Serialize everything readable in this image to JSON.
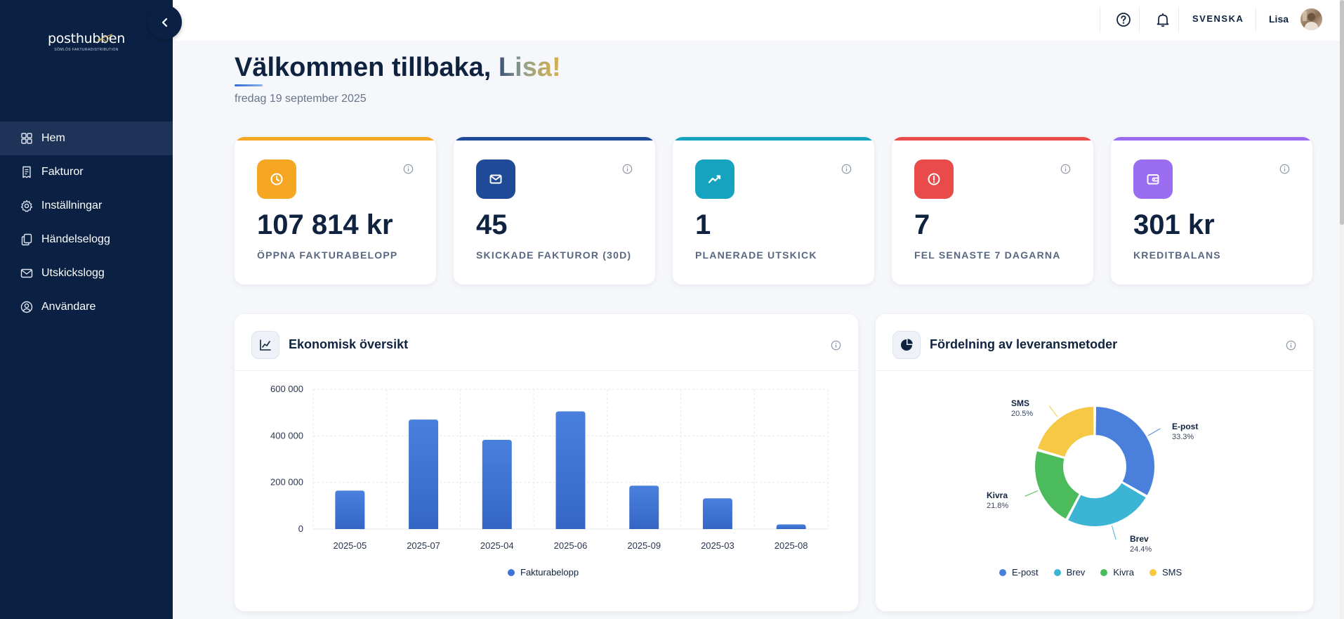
{
  "sidebar": {
    "logo": {
      "word": "posthubben",
      "tagline": "SÖMLÖS FAKTURADISTRIBUTION"
    },
    "items": [
      {
        "label": "Hem",
        "icon": "grid-icon"
      },
      {
        "label": "Fakturor",
        "icon": "invoice-icon"
      },
      {
        "label": "Inställningar",
        "icon": "gear-icon"
      },
      {
        "label": "Händelselogg",
        "icon": "copy-icon"
      },
      {
        "label": "Utskickslogg",
        "icon": "mail-icon"
      },
      {
        "label": "Användare",
        "icon": "user-icon"
      }
    ],
    "active_index": 0
  },
  "topbar": {
    "language": "SVENSKA",
    "user": "Lisa"
  },
  "welcome": {
    "greeting": "Välkommen tillbaka, ",
    "name": "Lisa",
    "exclaim": "!",
    "date": "fredag 19 september 2025"
  },
  "stats": [
    {
      "value": "107 814 kr",
      "label": "ÖPPNA FAKTURABELOPP",
      "icon": "clock-icon",
      "color": "#f5a623"
    },
    {
      "value": "45",
      "label": "SKICKADE FAKTUROR (30D)",
      "icon": "envelope-icon",
      "color": "#1f4a98"
    },
    {
      "value": "1",
      "label": "PLANERADE UTSKICK",
      "icon": "trend-icon",
      "color": "#15a3bf"
    },
    {
      "value": "7",
      "label": "FEL SENASTE 7 DAGARNA",
      "icon": "alert-icon",
      "color": "#e94b4b"
    },
    {
      "value": "301 kr",
      "label": "KREDITBALANS",
      "icon": "wallet-icon",
      "color": "#9a6cf0"
    }
  ],
  "panels": {
    "economy_title": "Ekonomisk översikt",
    "delivery_title": "Fördelning av leveransmetoder"
  },
  "chart_data": [
    {
      "type": "bar",
      "categories": [
        "2025-05",
        "2025-07",
        "2025-04",
        "2025-06",
        "2025-09",
        "2025-03",
        "2025-08"
      ],
      "series": [
        {
          "name": "Fakturabelopp",
          "values": [
            165000,
            470000,
            383000,
            505000,
            186000,
            132000,
            20000
          ],
          "color": "#3d74d6"
        }
      ],
      "yticks": [
        "600 000",
        "400 000",
        "200 000",
        "0"
      ],
      "ylim": [
        0,
        600000
      ],
      "grid": true,
      "legend": "bottom"
    },
    {
      "type": "pie",
      "donut": true,
      "slices": [
        {
          "name": "E-post",
          "value": 33.3,
          "label": "33.3%",
          "color": "#4a7fdc"
        },
        {
          "name": "Brev",
          "value": 24.4,
          "label": "24.4%",
          "color": "#3bb5d3"
        },
        {
          "name": "Kivra",
          "value": 21.8,
          "label": "21.8%",
          "color": "#4cbb5c"
        },
        {
          "name": "SMS",
          "value": 20.5,
          "label": "20.5%",
          "color": "#f7c843"
        }
      ],
      "legend": "bottom"
    }
  ]
}
